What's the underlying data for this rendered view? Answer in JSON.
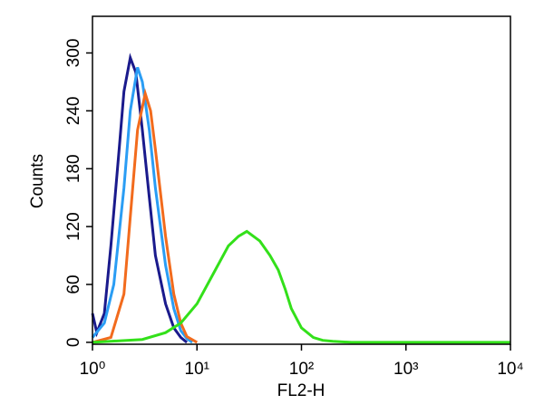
{
  "chart_data": {
    "type": "line",
    "xlabel": "FL2-H",
    "ylabel": "Counts",
    "xscale": "log",
    "xlim": [
      1,
      10000
    ],
    "ylim": [
      -2,
      338
    ],
    "xticks": [
      {
        "value": 1,
        "label": "10⁰"
      },
      {
        "value": 10,
        "label": "10¹"
      },
      {
        "value": 100,
        "label": "10²"
      },
      {
        "value": 1000,
        "label": "10³"
      },
      {
        "value": 10000,
        "label": "10⁴"
      }
    ],
    "yticks": [
      0,
      60,
      120,
      180,
      240,
      300
    ],
    "series": [
      {
        "color": "#1a1a8c",
        "x": [
          1,
          1.1,
          1.3,
          1.5,
          1.8,
          2.0,
          2.3,
          2.6,
          3.0,
          3.5,
          4,
          5,
          6,
          7,
          8
        ],
        "values": [
          30,
          10,
          30,
          100,
          200,
          260,
          295,
          280,
          220,
          150,
          90,
          40,
          15,
          5,
          0
        ]
      },
      {
        "color": "#2a9df4",
        "x": [
          1,
          1.3,
          1.6,
          2,
          2.3,
          2.7,
          3,
          3.5,
          4,
          5,
          6,
          7,
          8,
          9
        ],
        "values": [
          5,
          20,
          60,
          160,
          240,
          285,
          270,
          220,
          160,
          80,
          35,
          12,
          4,
          0
        ]
      },
      {
        "color": "#f26b1d",
        "x": [
          1,
          1.5,
          2,
          2.3,
          2.7,
          3.2,
          3.6,
          4,
          5,
          6,
          7,
          8,
          10
        ],
        "values": [
          0,
          5,
          50,
          130,
          220,
          258,
          240,
          200,
          110,
          50,
          20,
          6,
          0
        ]
      },
      {
        "color": "#33e01a",
        "x": [
          1,
          3,
          5,
          7,
          10,
          15,
          20,
          25,
          30,
          40,
          50,
          60,
          70,
          80,
          100,
          130,
          160,
          200,
          300,
          1000,
          10000
        ],
        "values": [
          0,
          3,
          10,
          20,
          40,
          75,
          100,
          110,
          115,
          105,
          90,
          75,
          55,
          35,
          15,
          5,
          2,
          1,
          0,
          0,
          0
        ]
      }
    ]
  }
}
